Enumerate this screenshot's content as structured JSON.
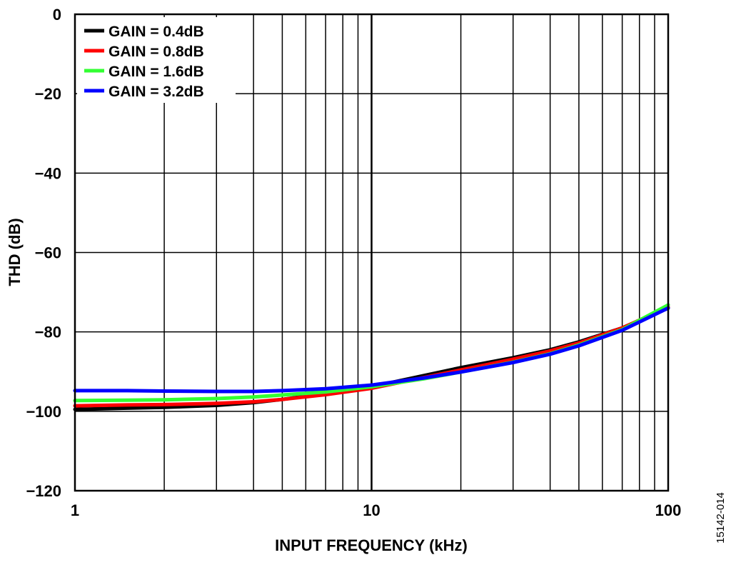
{
  "chart_data": {
    "type": "line",
    "xlabel": "INPUT FREQUENCY (kHz)",
    "ylabel": "THD (dB)",
    "x_scale": "log",
    "xlim": [
      1,
      100
    ],
    "ylim": [
      -120,
      0
    ],
    "x_ticks": [
      1,
      10,
      100
    ],
    "x_tick_labels": [
      "1",
      "10",
      "100"
    ],
    "y_ticks": [
      0,
      -20,
      -40,
      -60,
      -80,
      -100,
      -120
    ],
    "y_tick_labels": [
      "0",
      "−20",
      "−40",
      "−60",
      "−80",
      "−100",
      "−120"
    ],
    "grid": true,
    "legend_position": "top-left",
    "series": [
      {
        "name": "GAIN = 0.4dB",
        "color": "#000000",
        "x": [
          1,
          1.5,
          2,
          3,
          4,
          5,
          7,
          10,
          15,
          20,
          30,
          40,
          50,
          70,
          100
        ],
        "y": [
          -99.5,
          -99.2,
          -99,
          -98.5,
          -97.8,
          -97,
          -95.5,
          -93.8,
          -91,
          -89,
          -86.5,
          -84.5,
          -82.5,
          -79,
          -74
        ]
      },
      {
        "name": "GAIN = 0.8dB",
        "color": "#ff0000",
        "x": [
          1,
          1.5,
          2,
          3,
          4,
          5,
          7,
          10,
          15,
          20,
          30,
          40,
          50,
          70,
          100
        ],
        "y": [
          -98.6,
          -98.4,
          -98.3,
          -98,
          -97.6,
          -97,
          -95.8,
          -94.2,
          -91.5,
          -89.6,
          -86.9,
          -84.8,
          -82.8,
          -79,
          -73.8
        ]
      },
      {
        "name": "GAIN = 1.6dB",
        "color": "#33ff33",
        "x": [
          1,
          1.5,
          2,
          3,
          4,
          5,
          7,
          10,
          15,
          20,
          30,
          40,
          50,
          70,
          100
        ],
        "y": [
          -97.3,
          -97.2,
          -97.1,
          -96.8,
          -96.4,
          -95.9,
          -95.1,
          -93.8,
          -91.8,
          -90.1,
          -87.6,
          -85.5,
          -83.3,
          -79.4,
          -73.2
        ]
      },
      {
        "name": "GAIN = 3.2dB",
        "color": "#0000ff",
        "x": [
          1,
          1.5,
          2,
          3,
          4,
          5,
          7,
          10,
          15,
          20,
          30,
          40,
          50,
          70,
          100
        ],
        "y": [
          -94.8,
          -94.8,
          -94.9,
          -95,
          -95,
          -94.8,
          -94.3,
          -93.4,
          -91.6,
          -90.1,
          -87.7,
          -85.6,
          -83.5,
          -79.6,
          -74
        ]
      }
    ]
  },
  "figure_id": "15142-014"
}
